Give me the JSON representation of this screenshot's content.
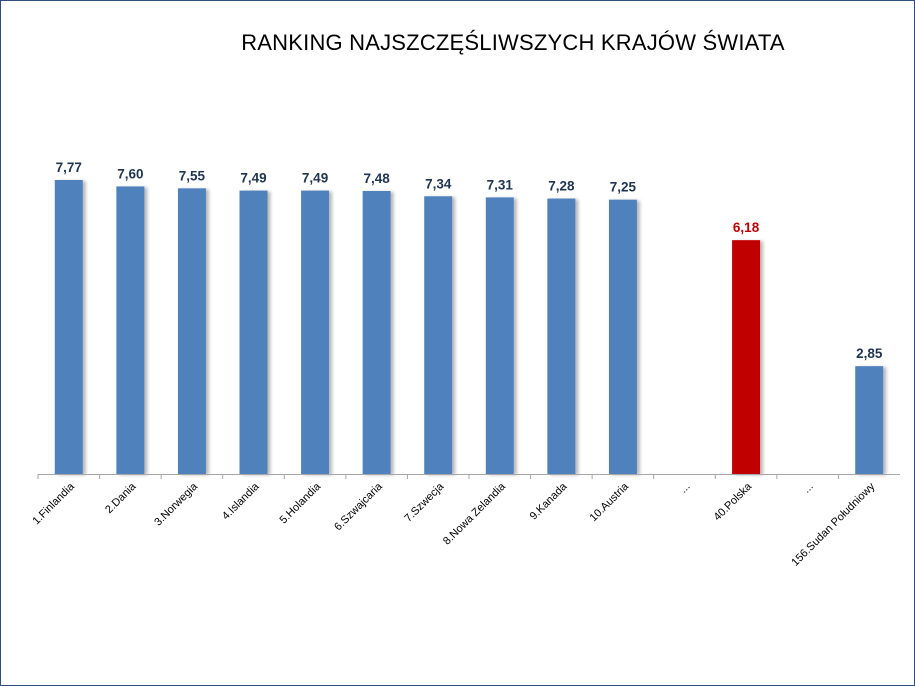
{
  "chart_data": {
    "type": "bar",
    "title": "RANKING NAJSZCZĘŚLIWSZYCH KRAJÓW ŚWIATA",
    "categories": [
      "1.Finlandia",
      "2.Dania",
      "3.Norwegia",
      "4.Islandia",
      "5.Holandia",
      "6.Szwajcaria",
      "7.Szwecja",
      "8.Nowa Zelandia",
      "9.Kanada",
      "10.Austria",
      "...",
      "40.Polska",
      "...",
      "156.Sudan Południowy"
    ],
    "values": [
      7.77,
      7.6,
      7.55,
      7.49,
      7.49,
      7.48,
      7.34,
      7.31,
      7.28,
      7.25,
      null,
      6.18,
      null,
      2.85
    ],
    "value_labels": [
      "7,77",
      "7,60",
      "7,55",
      "7,49",
      "7,49",
      "7,48",
      "7,34",
      "7,31",
      "7,28",
      "7,25",
      "",
      "6,18",
      "",
      "2,85"
    ],
    "highlight_category": "40.Polska",
    "colors": {
      "bar": "#4f81bd",
      "highlight": "#c00000",
      "label": "#1f3450",
      "highlight_label": "#c00000",
      "axis": "#a6a6a6"
    },
    "ylim": [
      0,
      8
    ],
    "grid": false,
    "legend": "none"
  }
}
